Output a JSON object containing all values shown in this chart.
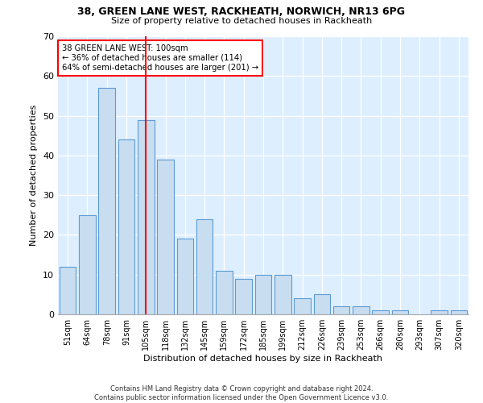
{
  "title1": "38, GREEN LANE WEST, RACKHEATH, NORWICH, NR13 6PG",
  "title2": "Size of property relative to detached houses in Rackheath",
  "xlabel": "Distribution of detached houses by size in Rackheath",
  "ylabel": "Number of detached properties",
  "categories": [
    "51sqm",
    "64sqm",
    "78sqm",
    "91sqm",
    "105sqm",
    "118sqm",
    "132sqm",
    "145sqm",
    "159sqm",
    "172sqm",
    "185sqm",
    "199sqm",
    "212sqm",
    "226sqm",
    "239sqm",
    "253sqm",
    "266sqm",
    "280sqm",
    "293sqm",
    "307sqm",
    "320sqm"
  ],
  "values": [
    12,
    25,
    57,
    44,
    49,
    39,
    19,
    24,
    11,
    9,
    10,
    10,
    4,
    5,
    2,
    2,
    1,
    1,
    0,
    1,
    1
  ],
  "bar_color": "#c9ddf0",
  "bar_edge_color": "#5b9bd5",
  "ref_line_index": 4,
  "ref_line_label": "38 GREEN LANE WEST: 100sqm",
  "annotation_line2": "← 36% of detached houses are smaller (114)",
  "annotation_line3": "64% of semi-detached houses are larger (201) →",
  "ylim": [
    0,
    70
  ],
  "yticks": [
    0,
    10,
    20,
    30,
    40,
    50,
    60,
    70
  ],
  "footer1": "Contains HM Land Registry data © Crown copyright and database right 2024.",
  "footer2": "Contains public sector information licensed under the Open Government Licence v3.0.",
  "bg_color": "#ffffff",
  "plot_bg_color": "#ddeeff"
}
